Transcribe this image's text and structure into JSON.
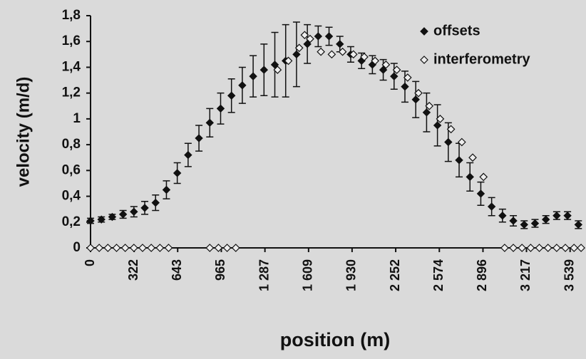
{
  "chart_data": {
    "type": "scatter",
    "xlabel": "position (m)",
    "ylabel": "velocity (m/d)",
    "xlim": [
      0,
      3630
    ],
    "ylim": [
      0,
      1.8
    ],
    "xticks": [
      0,
      322,
      643,
      965,
      {
        "value": 1287,
        "label": "1 287"
      },
      {
        "value": 1609,
        "label": "1 609"
      },
      {
        "value": 1930,
        "label": "1 930"
      },
      {
        "value": 2252,
        "label": "2 252"
      },
      {
        "value": 2574,
        "label": "2 574"
      },
      {
        "value": 2896,
        "label": "2 896"
      },
      {
        "value": 3217,
        "label": "3 217"
      },
      {
        "value": 3539,
        "label": "3 539"
      }
    ],
    "yticks": [
      0,
      {
        "value": 0.2,
        "label": "0,2"
      },
      {
        "value": 0.4,
        "label": "0,4"
      },
      {
        "value": 0.6,
        "label": "0,6"
      },
      {
        "value": 0.8,
        "label": "0,8"
      },
      1,
      {
        "value": 1.2,
        "label": "1,2"
      },
      {
        "value": 1.4,
        "label": "1,4"
      },
      {
        "value": 1.6,
        "label": "1,6"
      },
      {
        "value": 1.8,
        "label": "1,8"
      }
    ],
    "legend": "top-right",
    "series": [
      {
        "name": "offsets",
        "color": "#111111",
        "marker": "filled-diamond",
        "x": [
          0,
          80,
          160,
          240,
          320,
          400,
          480,
          560,
          640,
          720,
          800,
          880,
          960,
          1040,
          1120,
          1200,
          1280,
          1360,
          1440,
          1520,
          1600,
          1680,
          1760,
          1840,
          1920,
          2000,
          2080,
          2160,
          2240,
          2320,
          2400,
          2480,
          2560,
          2640,
          2720,
          2800,
          2880,
          2960,
          3040,
          3120,
          3200,
          3280,
          3360,
          3440,
          3520,
          3600
        ],
        "values": [
          0.21,
          0.22,
          0.24,
          0.26,
          0.28,
          0.31,
          0.35,
          0.45,
          0.58,
          0.72,
          0.85,
          0.97,
          1.08,
          1.18,
          1.26,
          1.33,
          1.38,
          1.42,
          1.45,
          1.5,
          1.58,
          1.64,
          1.64,
          1.58,
          1.5,
          1.45,
          1.42,
          1.38,
          1.33,
          1.25,
          1.15,
          1.05,
          0.95,
          0.82,
          0.68,
          0.55,
          0.42,
          0.32,
          0.25,
          0.21,
          0.18,
          0.19,
          0.22,
          0.25,
          0.25,
          0.18
        ],
        "errors": [
          0.02,
          0.02,
          0.02,
          0.03,
          0.04,
          0.05,
          0.06,
          0.07,
          0.08,
          0.09,
          0.1,
          0.11,
          0.12,
          0.13,
          0.14,
          0.16,
          0.2,
          0.25,
          0.28,
          0.25,
          0.15,
          0.08,
          0.07,
          0.06,
          0.06,
          0.06,
          0.07,
          0.08,
          0.1,
          0.12,
          0.14,
          0.15,
          0.16,
          0.15,
          0.13,
          0.11,
          0.09,
          0.07,
          0.05,
          0.04,
          0.03,
          0.03,
          0.03,
          0.03,
          0.03,
          0.03
        ]
      },
      {
        "name": "interferometry",
        "color": "#111111",
        "marker": "open-diamond",
        "x": [
          0,
          64,
          128,
          192,
          256,
          320,
          384,
          448,
          512,
          576,
          880,
          944,
          1008,
          1072,
          1380,
          1460,
          1540,
          1580,
          1620,
          1700,
          1780,
          1860,
          1940,
          2020,
          2100,
          2180,
          2260,
          2340,
          2420,
          2500,
          2580,
          2660,
          2740,
          2820,
          2900,
          3056,
          3120,
          3184,
          3248,
          3312,
          3376,
          3440,
          3504,
          3568,
          3620
        ],
        "values": [
          0,
          0,
          0,
          0,
          0,
          0,
          0,
          0,
          0,
          0,
          0,
          0,
          0,
          0,
          1.38,
          1.45,
          1.55,
          1.65,
          1.62,
          1.52,
          1.5,
          1.52,
          1.5,
          1.48,
          1.45,
          1.42,
          1.38,
          1.32,
          1.2,
          1.1,
          1.0,
          0.92,
          0.82,
          0.7,
          0.55,
          0,
          0,
          0,
          0,
          0,
          0,
          0,
          0,
          0,
          0
        ]
      }
    ]
  }
}
